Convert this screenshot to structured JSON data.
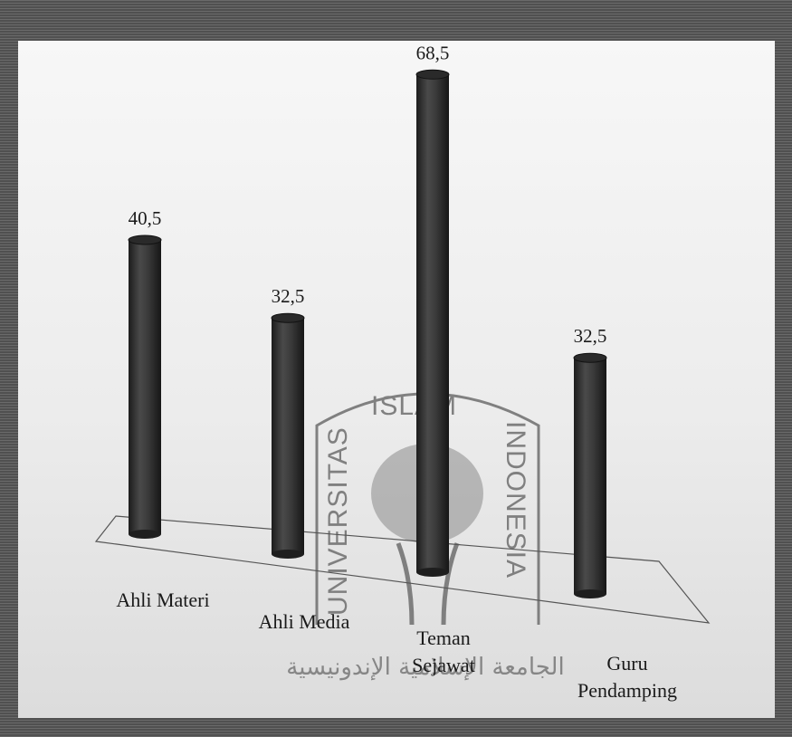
{
  "chart_data": {
    "type": "bar",
    "categories": [
      "Ahli Materi",
      "Ahli Media",
      "Teman Sejawat",
      "Guru Pendamping"
    ],
    "category_lines": [
      [
        "Ahli Materi"
      ],
      [
        "Ahli Media"
      ],
      [
        "Teman",
        "Sejawat"
      ],
      [
        "Guru",
        "Pendamping"
      ]
    ],
    "values": [
      40.5,
      32.5,
      68.5,
      32.5
    ],
    "value_labels": [
      "40,5",
      "32,5",
      "68,5",
      "32,5"
    ],
    "title": "",
    "xlabel": "",
    "ylabel": "",
    "ylim": [
      0,
      70
    ],
    "grid": false,
    "legend": "none",
    "bar_style": "3d-cylinder",
    "bar_color": "#3a3a3a"
  },
  "watermark": {
    "top_text": "ISLAM",
    "left_text": "UNIVERSITAS",
    "right_text": "INDONESIA",
    "arabic_text": "الجامعة الإسلامية الإندونيسية",
    "color": "#6e6e6e"
  }
}
